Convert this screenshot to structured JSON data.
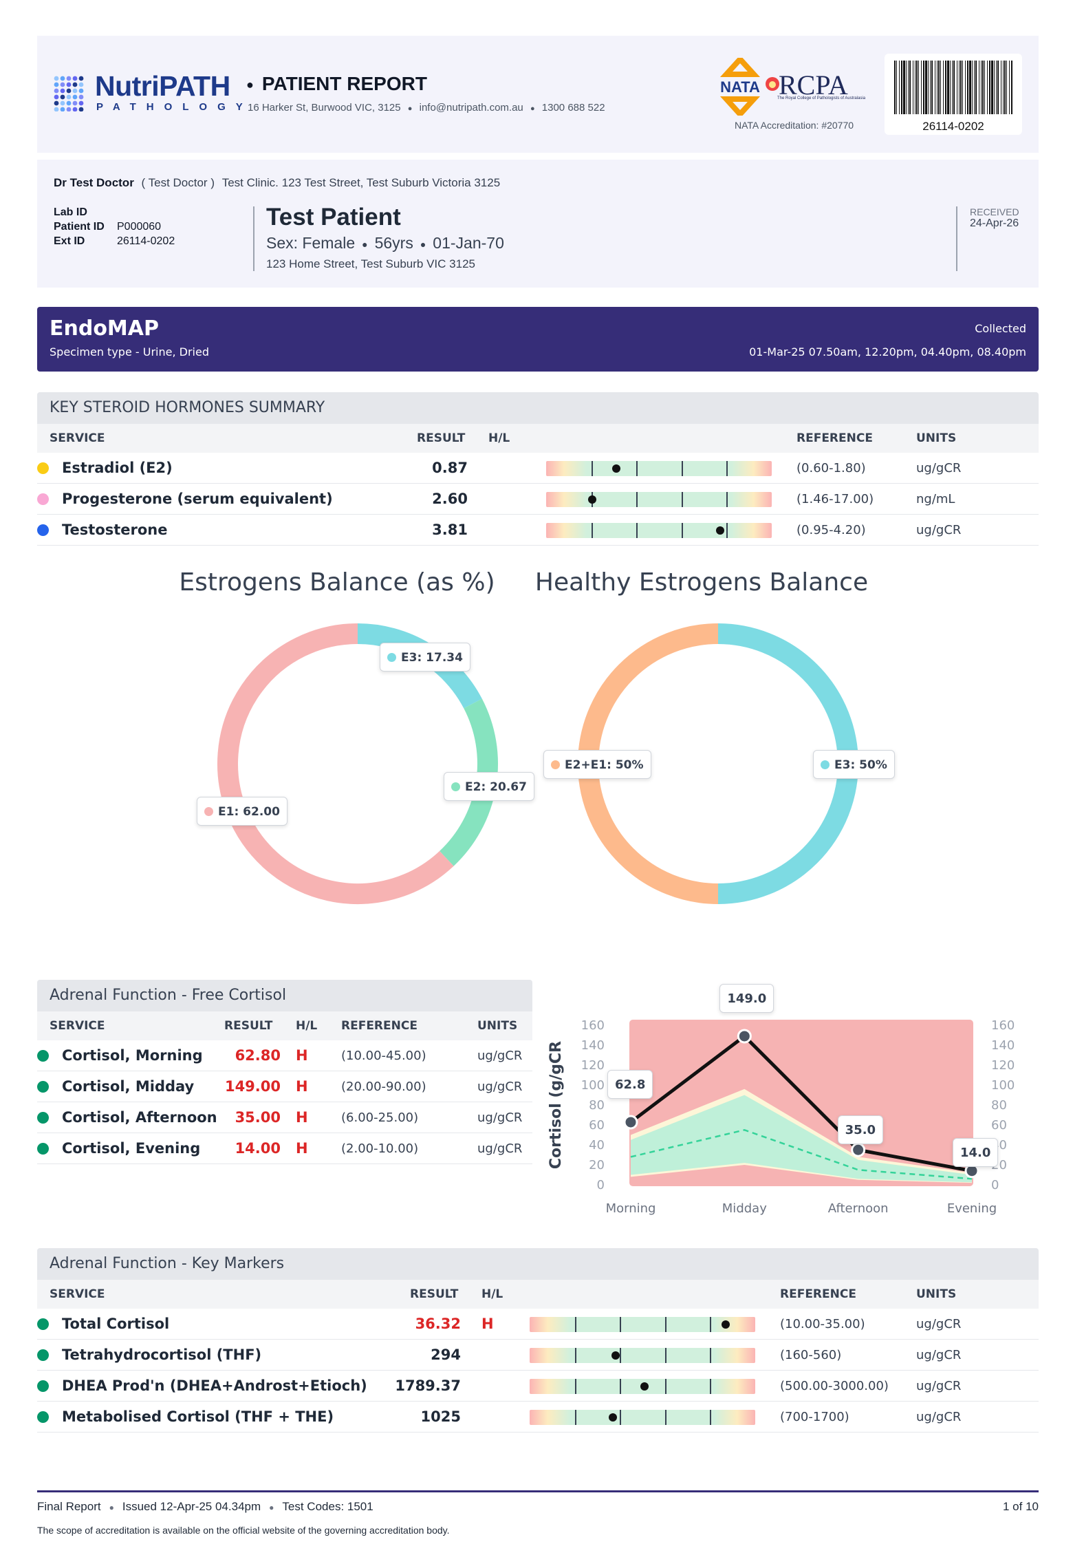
{
  "header": {
    "brand_name": "NutriPATH",
    "brand_sub": "PATHOLOGY",
    "report_title": "PATIENT REPORT",
    "address": "16 Harker St, Burwood VIC, 3125",
    "email": "info@nutripath.com.au",
    "phone": "1300 688 522",
    "nata_logo": "NATA",
    "rcpa_logo": "RCPA",
    "rcpa_sub": "The Royal College of Pathologists of Australasia",
    "nata_accreditation": "NATA Accreditation: #20770",
    "barcode_number": "26114-0202"
  },
  "doctor": {
    "name": "Dr Test Doctor",
    "short": "( Test Doctor )",
    "clinic": "Test Clinic. 123 Test Street, Test Suburb Victoria 3125"
  },
  "patient": {
    "lab_id_label": "Lab ID",
    "lab_id": "",
    "patient_id_label": "Patient ID",
    "patient_id": "P000060",
    "ext_id_label": "Ext ID",
    "ext_id": "26114-0202",
    "name": "Test Patient",
    "sex": "Sex: Female",
    "age": "56yrs",
    "dob": "01-Jan-70",
    "address": "123 Home Street, Test Suburb VIC 3125",
    "received_label": "RECEIVED",
    "received_date": "24-Apr-26"
  },
  "banner": {
    "test_name": "EndoMAP",
    "specimen": "Specimen type - Urine, Dried",
    "collected_label": "Collected",
    "collected_times": "01-Mar-25 07.50am, 12.20pm, 04.40pm, 08.40pm"
  },
  "steroids": {
    "title": "KEY STEROID HORMONES SUMMARY",
    "headers": {
      "service": "SERVICE",
      "result": "RESULT",
      "hl": "H/L",
      "reference": "REFERENCE",
      "units": "UNITS"
    },
    "rows": [
      {
        "service": "Estradiol (E2)",
        "result": "0.87",
        "hl": "",
        "reference": "(0.60-1.80)",
        "units": "ug/gCR",
        "color": "#facc15",
        "gauge": 0.31
      },
      {
        "service": "Progesterone (serum equivalent)",
        "result": "2.60",
        "hl": "",
        "reference": "(1.46-17.00)",
        "units": "ng/mL",
        "color": "#f9a8d4",
        "gauge": 0.205
      },
      {
        "service": "Testosterone",
        "result": "3.81",
        "hl": "",
        "reference": "(0.95-4.20)",
        "units": "ug/gCR",
        "color": "#2563eb",
        "gauge": 0.77
      }
    ]
  },
  "estrogen_titles": {
    "left": "Estrogens Balance (as %)",
    "right": "Healthy Estrogens Balance"
  },
  "cortisol": {
    "title": "Adrenal Function - Free Cortisol",
    "headers": {
      "service": "SERVICE",
      "result": "RESULT",
      "hl": "H/L",
      "reference": "REFERENCE",
      "units": "UNITS"
    },
    "rows": [
      {
        "service": "Cortisol, Morning",
        "result": "62.80",
        "hl": "H",
        "reference": "(10.00-45.00)",
        "units": "ug/gCR"
      },
      {
        "service": "Cortisol, Midday",
        "result": "149.00",
        "hl": "H",
        "reference": "(20.00-90.00)",
        "units": "ug/gCR"
      },
      {
        "service": "Cortisol, Afternoon",
        "result": "35.00",
        "hl": "H",
        "reference": "(6.00-25.00)",
        "units": "ug/gCR"
      },
      {
        "service": "Cortisol, Evening",
        "result": "14.00",
        "hl": "H",
        "reference": "(2.00-10.00)",
        "units": "ug/gCR"
      }
    ],
    "bullet_color": "#059669"
  },
  "markers": {
    "title": "Adrenal Function - Key Markers",
    "headers": {
      "service": "SERVICE",
      "result": "RESULT",
      "hl": "H/L",
      "reference": "REFERENCE",
      "units": "UNITS"
    },
    "rows": [
      {
        "service": "Total Cortisol",
        "result": "36.32",
        "hl": "H",
        "reference": "(10.00-35.00)",
        "units": "ug/gCR",
        "gauge": 0.87,
        "high": true
      },
      {
        "service": "Tetrahydrocortisol (THF)",
        "result": "294",
        "hl": "",
        "reference": "(160-560)",
        "units": "ug/gCR",
        "gauge": 0.38,
        "high": false
      },
      {
        "service": "DHEA Prod'n (DHEA+Androst+Etioch)",
        "result": "1789.37",
        "hl": "",
        "reference": "(500.00-3000.00)",
        "units": "ug/gCR",
        "gauge": 0.51,
        "high": false
      },
      {
        "service": "Metabolised Cortisol (THF + THE)",
        "result": "1025",
        "hl": "",
        "reference": "(700-1700)",
        "units": "ug/gCR",
        "gauge": 0.37,
        "high": false
      }
    ]
  },
  "footer": {
    "status": "Final Report",
    "issued": "Issued 12-Apr-25 04.34pm",
    "test_codes": "Test Codes: 1501",
    "page": "1 of 10",
    "scope": "The scope of accreditation is available on the official website of the governing accreditation body."
  },
  "chart_data": [
    {
      "type": "pie",
      "variant": "donut",
      "title": "Estrogens Balance (as %)",
      "slices": [
        {
          "label": "E3",
          "value": 17.34,
          "display": "E3: 17.34",
          "color": "#7ddbe3"
        },
        {
          "label": "E2",
          "value": 20.67,
          "display": "E2: 20.67",
          "color": "#86e3bf"
        },
        {
          "label": "E1",
          "value": 62.0,
          "display": "E1: 62.00",
          "color": "#f7b3b3"
        }
      ]
    },
    {
      "type": "pie",
      "variant": "donut",
      "title": "Healthy Estrogens Balance",
      "slices": [
        {
          "label": "E3",
          "value": 50,
          "display": "E3: 50%",
          "color": "#7ddbe3"
        },
        {
          "label": "E2+E1",
          "value": 50,
          "display": "E2+E1: 50%",
          "color": "#fdba8c"
        }
      ]
    },
    {
      "type": "line",
      "categories": [
        "Morning",
        "Midday",
        "Afternoon",
        "Evening"
      ],
      "ylabel": "Cortisol (g/gCR",
      "ylim": [
        0,
        160
      ],
      "yticks": [
        0,
        20,
        40,
        60,
        80,
        100,
        120,
        140,
        160
      ],
      "series": [
        {
          "values": [
            62.8,
            149.0,
            35.0,
            14.0
          ],
          "labels": [
            "62.8",
            "149.0",
            "35.0",
            "14.0"
          ],
          "color": "#111111"
        }
      ],
      "reference_band_outer": {
        "low": [
          8,
          20,
          5,
          2
        ],
        "high": [
          50,
          96,
          28,
          12
        ],
        "color": "#fdf6d8"
      },
      "reference_band_inner": {
        "low": [
          10,
          22,
          6,
          2.5
        ],
        "high": [
          45,
          90,
          25,
          10
        ],
        "color": "#bff0d9"
      },
      "reference_mean": [
        28,
        55,
        15,
        6
      ],
      "background_color": "#f6b3b3"
    }
  ]
}
